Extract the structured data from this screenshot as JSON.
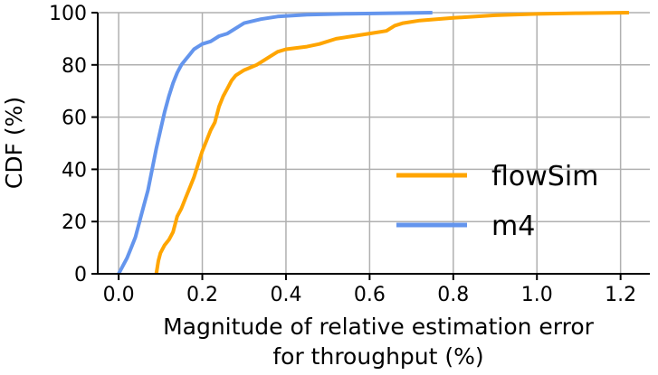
{
  "chart_data": {
    "type": "line",
    "title": "",
    "xlabel_lines": [
      "Magnitude of relative estimation error",
      "for throughput (%)"
    ],
    "ylabel": "CDF (%)",
    "xlim": [
      -0.05,
      1.27
    ],
    "ylim": [
      0,
      100
    ],
    "xticks": [
      0.0,
      0.2,
      0.4,
      0.6,
      0.8,
      1.0,
      1.2
    ],
    "xtick_labels": [
      "0.0",
      "0.2",
      "0.4",
      "0.6",
      "0.8",
      "1.0",
      "1.2"
    ],
    "yticks": [
      0,
      20,
      40,
      60,
      80,
      100
    ],
    "ytick_labels": [
      "0",
      "20",
      "40",
      "60",
      "80",
      "100"
    ],
    "grid": true,
    "legend_position": "center-right",
    "series": [
      {
        "name": "flowSim",
        "color": "#FFA500",
        "x": [
          0.09,
          0.095,
          0.1,
          0.11,
          0.12,
          0.13,
          0.14,
          0.15,
          0.16,
          0.17,
          0.18,
          0.19,
          0.2,
          0.21,
          0.22,
          0.23,
          0.24,
          0.25,
          0.26,
          0.27,
          0.28,
          0.3,
          0.33,
          0.36,
          0.38,
          0.4,
          0.45,
          0.48,
          0.52,
          0.56,
          0.6,
          0.64,
          0.66,
          0.68,
          0.72,
          0.8,
          0.9,
          1.0,
          1.1,
          1.22
        ],
        "y": [
          0,
          5,
          8,
          11,
          13,
          16,
          22,
          25,
          29,
          33,
          37,
          42,
          47,
          51,
          55,
          58,
          64,
          68,
          71,
          74,
          76,
          78,
          80,
          83,
          85,
          86,
          87,
          88,
          90,
          91,
          92,
          93,
          95,
          96,
          97,
          98,
          99,
          99.5,
          99.8,
          100
        ]
      },
      {
        "name": "m4",
        "color": "#6495ED",
        "x": [
          0.0,
          0.01,
          0.02,
          0.03,
          0.04,
          0.05,
          0.06,
          0.07,
          0.08,
          0.09,
          0.1,
          0.11,
          0.12,
          0.13,
          0.14,
          0.15,
          0.16,
          0.17,
          0.18,
          0.19,
          0.2,
          0.22,
          0.24,
          0.26,
          0.28,
          0.3,
          0.34,
          0.38,
          0.45,
          0.55,
          0.65,
          0.75
        ],
        "y": [
          0,
          3,
          6,
          10,
          14,
          20,
          26,
          32,
          40,
          48,
          55,
          62,
          68,
          73,
          77,
          80,
          82,
          84,
          86,
          87,
          88,
          89,
          91,
          92,
          94,
          96,
          97.5,
          98.5,
          99.2,
          99.6,
          99.8,
          100
        ]
      }
    ]
  }
}
